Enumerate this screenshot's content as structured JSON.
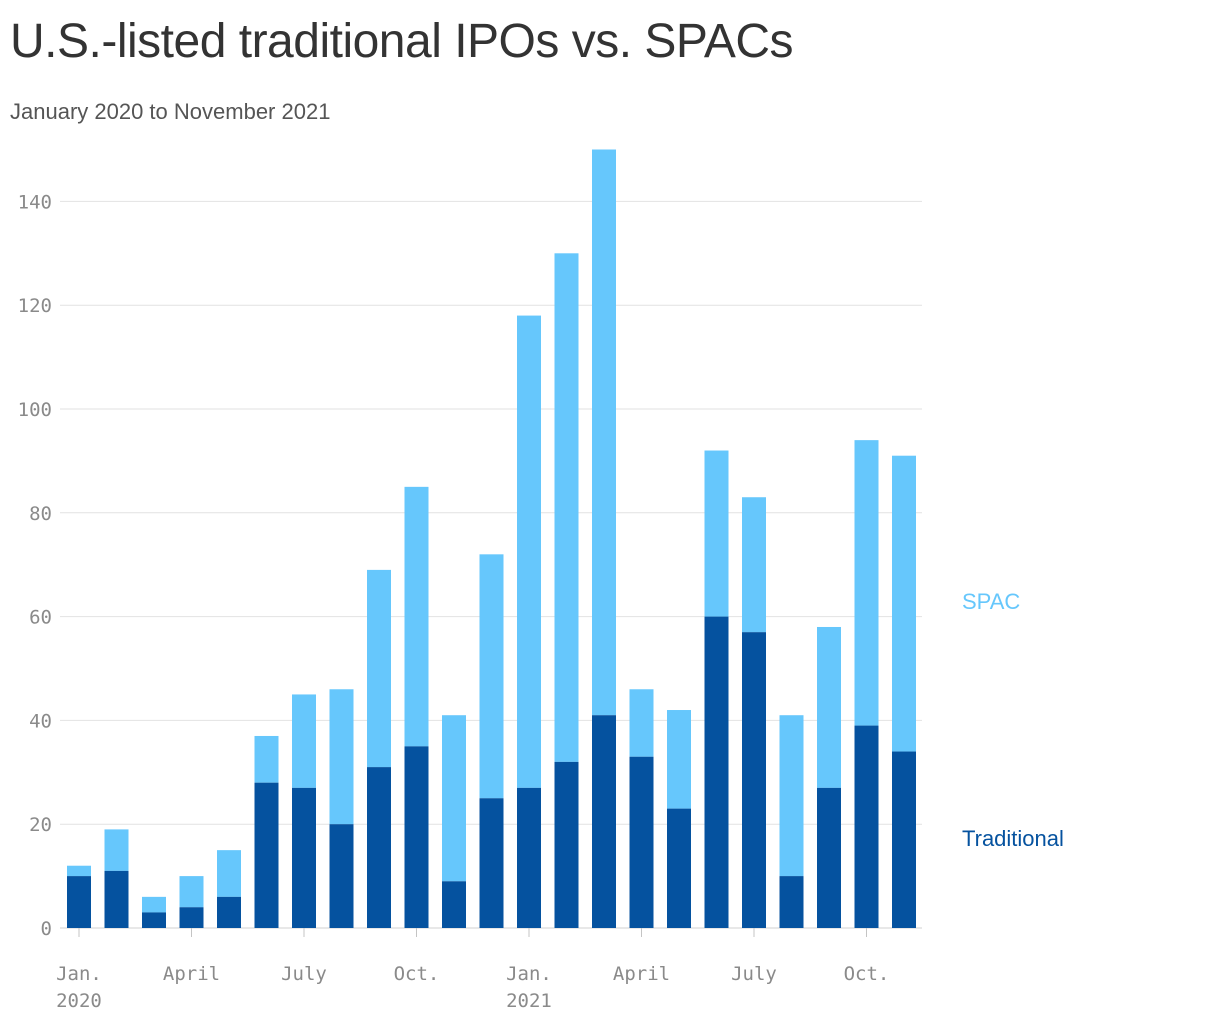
{
  "title": "U.S.-listed traditional IPOs vs. SPACs",
  "subtitle": "January 2020 to November 2021",
  "colors": {
    "traditional": "#05529f",
    "spac": "#66c7fc",
    "grid": "#e2e2e2",
    "axis_text": "#8a8a8a"
  },
  "chart_data": {
    "type": "bar",
    "stacked": true,
    "title": "U.S.-listed traditional IPOs vs. SPACs",
    "subtitle": "January 2020 to November 2021",
    "categories": [
      "Jan. 2020",
      "Feb. 2020",
      "Mar. 2020",
      "Apr. 2020",
      "May 2020",
      "Jun. 2020",
      "Jul. 2020",
      "Aug. 2020",
      "Sep. 2020",
      "Oct. 2020",
      "Nov. 2020",
      "Dec. 2020",
      "Jan. 2021",
      "Feb. 2021",
      "Mar. 2021",
      "Apr. 2021",
      "May 2021",
      "Jun. 2021",
      "Jul. 2021",
      "Aug. 2021",
      "Sep. 2021",
      "Oct. 2021",
      "Nov. 2021"
    ],
    "series": [
      {
        "name": "Traditional",
        "values": [
          10,
          11,
          3,
          4,
          6,
          28,
          27,
          20,
          31,
          35,
          9,
          25,
          27,
          32,
          41,
          33,
          23,
          60,
          57,
          10,
          27,
          39,
          34
        ]
      },
      {
        "name": "SPAC",
        "values": [
          2,
          8,
          3,
          6,
          9,
          9,
          18,
          26,
          38,
          50,
          32,
          47,
          91,
          98,
          109,
          13,
          19,
          32,
          26,
          31,
          31,
          55,
          57
        ]
      }
    ],
    "ylim": [
      0,
      150
    ],
    "yticks": [
      0,
      20,
      40,
      60,
      80,
      100,
      120,
      140
    ],
    "ytick_labels": [
      "0",
      "20",
      "40",
      "60",
      "80",
      "100",
      "120",
      "140"
    ],
    "xticks": [
      {
        "index": 0,
        "line1": "Jan.",
        "line2": "2020"
      },
      {
        "index": 3,
        "line1": "April",
        "line2": ""
      },
      {
        "index": 6,
        "line1": "July",
        "line2": ""
      },
      {
        "index": 9,
        "line1": "Oct.",
        "line2": ""
      },
      {
        "index": 12,
        "line1": "Jan.",
        "line2": "2021"
      },
      {
        "index": 15,
        "line1": "April",
        "line2": ""
      },
      {
        "index": 18,
        "line1": "July",
        "line2": ""
      },
      {
        "index": 21,
        "line1": "Oct.",
        "line2": ""
      }
    ],
    "grid": true,
    "legend": {
      "placement": "right",
      "labels": {
        "spac": "SPAC",
        "traditional": "Traditional"
      }
    }
  }
}
